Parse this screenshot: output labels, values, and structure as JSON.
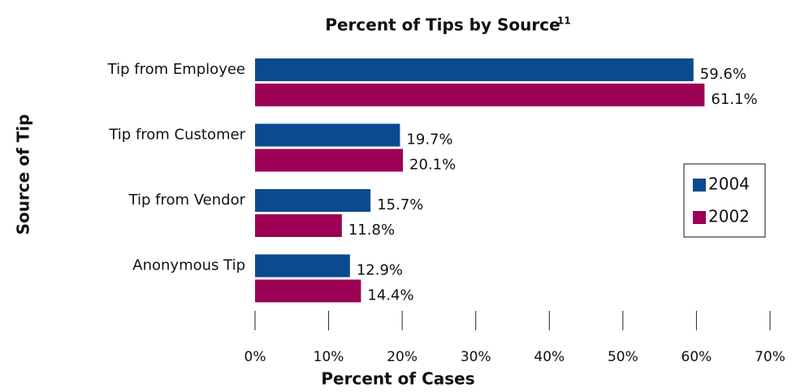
{
  "chart_data": {
    "type": "hbar",
    "title": "Percent of Tips by Source",
    "title_footnote": "11",
    "x_label": "Percent of Cases",
    "y_label": "Source of Tip",
    "categories": [
      "Tip from Employee",
      "Tip from Customer",
      "Tip from Vendor",
      "Anonymous Tip"
    ],
    "series": [
      {
        "name": "2004",
        "color": "#0b4a8e",
        "values": [
          59.6,
          19.7,
          15.7,
          12.9
        ],
        "value_labels": [
          "59.6%",
          "19.7%",
          "15.7%",
          "12.9%"
        ]
      },
      {
        "name": "2002",
        "color": "#9b0055",
        "values": [
          61.1,
          20.1,
          11.8,
          14.4
        ],
        "value_labels": [
          "61.1%",
          "20.1%",
          "11.8%",
          "14.4%"
        ]
      }
    ],
    "xlim": [
      0,
      70
    ],
    "xticks": [
      {
        "value": 0,
        "label": "0%"
      },
      {
        "value": 10,
        "label": "10%"
      },
      {
        "value": 20,
        "label": "20%"
      },
      {
        "value": 30,
        "label": "30%"
      },
      {
        "value": 40,
        "label": "40%"
      },
      {
        "value": 50,
        "label": "50%"
      },
      {
        "value": 60,
        "label": "60%"
      },
      {
        "value": 70,
        "label": "70%"
      }
    ],
    "legend": "right"
  }
}
